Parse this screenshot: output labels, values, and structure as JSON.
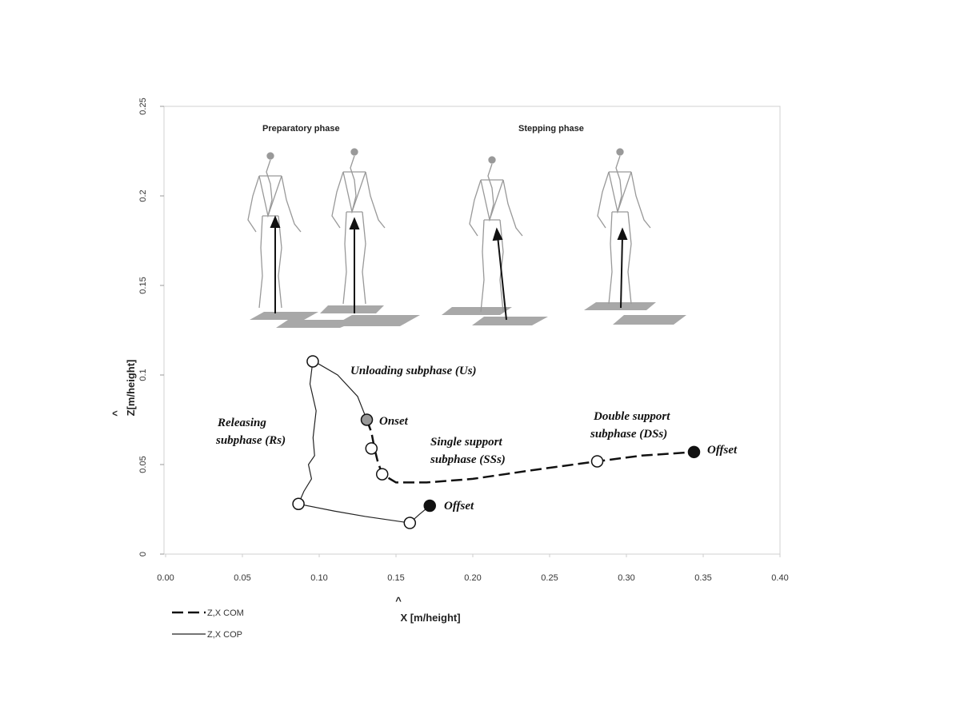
{
  "chart_data": {
    "type": "line",
    "x_label": "X [m/height]",
    "y_label": "Z[m/height]",
    "hat": "^",
    "xlim": [
      0,
      0.4
    ],
    "ylim": [
      0,
      0.25
    ],
    "xticks": [
      {
        "value": 0,
        "label": "0.00"
      },
      {
        "value": 0.05,
        "label": "0.05"
      },
      {
        "value": 0.1,
        "label": "0.10"
      },
      {
        "value": 0.15,
        "label": "0.15"
      },
      {
        "value": 0.2,
        "label": "0.20"
      },
      {
        "value": 0.25,
        "label": "0.25"
      },
      {
        "value": 0.3,
        "label": "0.30"
      },
      {
        "value": 0.35,
        "label": "0.35"
      },
      {
        "value": 0.4,
        "label": "0.40"
      }
    ],
    "yticks": [
      0,
      0.05,
      0.1,
      0.15,
      0.2,
      0.25
    ],
    "series": [
      {
        "name": "Z,X COM",
        "color": "#111111",
        "dash": true,
        "x": [
          0.131,
          0.134,
          0.136,
          0.138,
          0.141,
          0.15,
          0.17,
          0.2,
          0.24,
          0.281,
          0.31,
          0.344
        ],
        "values": [
          0.075,
          0.068,
          0.059,
          0.052,
          0.0446,
          0.04,
          0.04,
          0.042,
          0.047,
          0.0518,
          0.055,
          0.057
        ]
      },
      {
        "name": "Z,X COP",
        "color": "#222222",
        "dash": false,
        "x": [
          0.131,
          0.125,
          0.112,
          0.1,
          0.0958,
          0.094,
          0.098,
          0.096,
          0.097,
          0.093,
          0.095,
          0.09,
          0.0865,
          0.11,
          0.13,
          0.159,
          0.165,
          0.172
        ],
        "values": [
          0.075,
          0.088,
          0.1,
          0.106,
          0.1076,
          0.095,
          0.08,
          0.065,
          0.055,
          0.05,
          0.042,
          0.035,
          0.028,
          0.024,
          0.021,
          0.0174,
          0.022,
          0.027
        ]
      }
    ],
    "points": [
      {
        "x": 0.0958,
        "y": 0.1076,
        "color": "#ffffff"
      },
      {
        "x": 0.131,
        "y": 0.075,
        "color": "#999999"
      },
      {
        "x": 0.134,
        "y": 0.059,
        "color": "#ffffff"
      },
      {
        "x": 0.141,
        "y": 0.0446,
        "color": "#ffffff"
      },
      {
        "x": 0.0865,
        "y": 0.028,
        "color": "#ffffff"
      },
      {
        "x": 0.159,
        "y": 0.0174,
        "color": "#ffffff"
      },
      {
        "x": 0.172,
        "y": 0.027,
        "color": "#111111"
      },
      {
        "x": 0.281,
        "y": 0.0518,
        "color": "#ffffff"
      },
      {
        "x": 0.344,
        "y": 0.057,
        "color": "#111111"
      }
    ],
    "annotations": [
      "Preparatory phase",
      "Stepping phase",
      "Unloading subphase (Us)",
      "Onset",
      "Releasing",
      "subphase (Rs)",
      "Single support",
      "subphase (SSs)",
      "Double support",
      "subphase (DSs)",
      "Offset",
      "Offset"
    ]
  }
}
